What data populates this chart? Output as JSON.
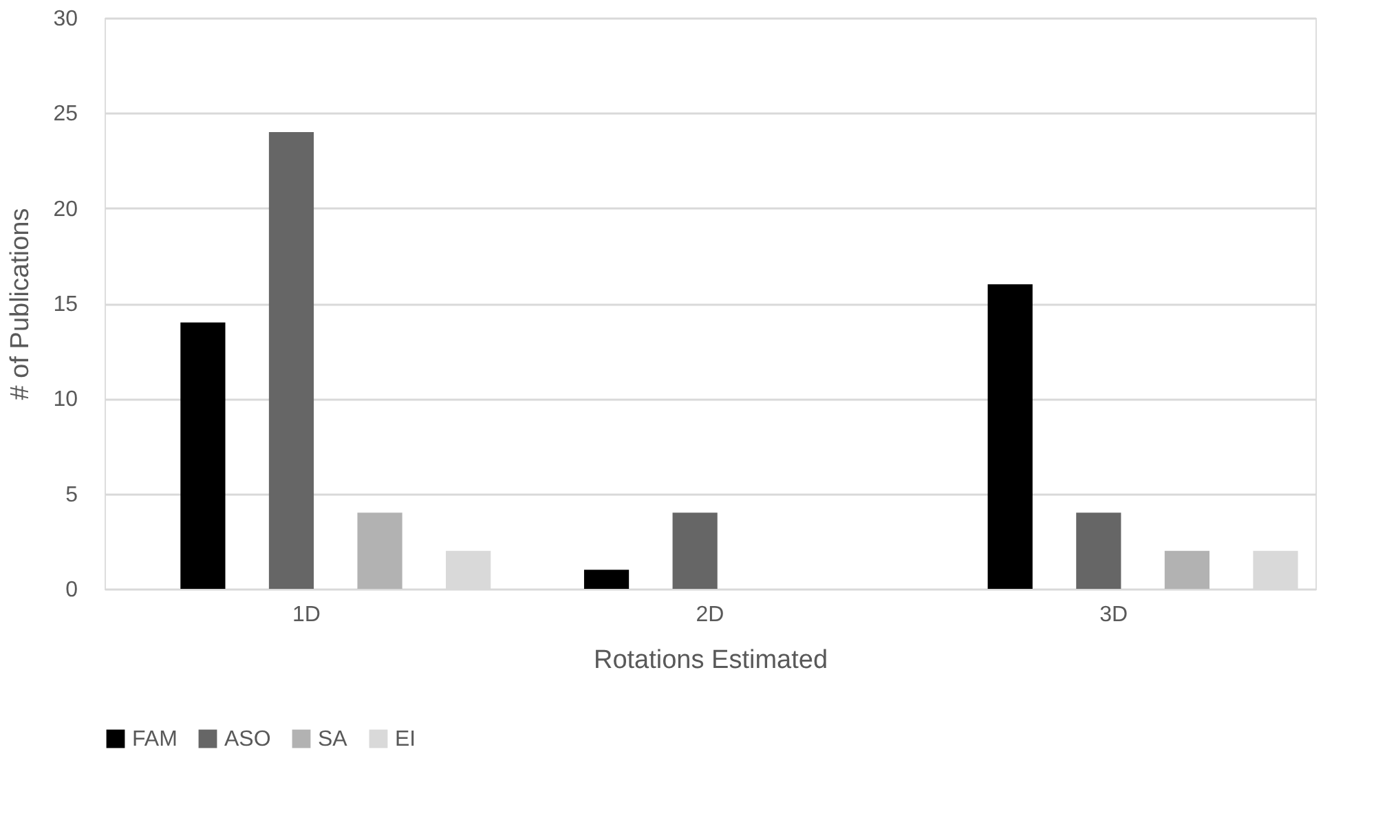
{
  "chart_data": {
    "type": "bar",
    "xlabel": "Rotations Estimated",
    "ylabel": "# of Publications",
    "categories": [
      "1D",
      "2D",
      "3D"
    ],
    "series": [
      {
        "name": "FAM",
        "color": "#000000",
        "values": [
          14,
          1,
          16
        ]
      },
      {
        "name": "ASO",
        "color": "#666666",
        "values": [
          24,
          4,
          4
        ]
      },
      {
        "name": "SA",
        "color": "#b2b2b2",
        "values": [
          4,
          0,
          2
        ]
      },
      {
        "name": "EI",
        "color": "#d9d9d9",
        "values": [
          2,
          0,
          2
        ]
      }
    ],
    "ylim": [
      0,
      30
    ],
    "yticks": [
      0,
      5,
      10,
      15,
      20,
      25,
      30
    ],
    "grid": "y",
    "legend": "bottom"
  }
}
